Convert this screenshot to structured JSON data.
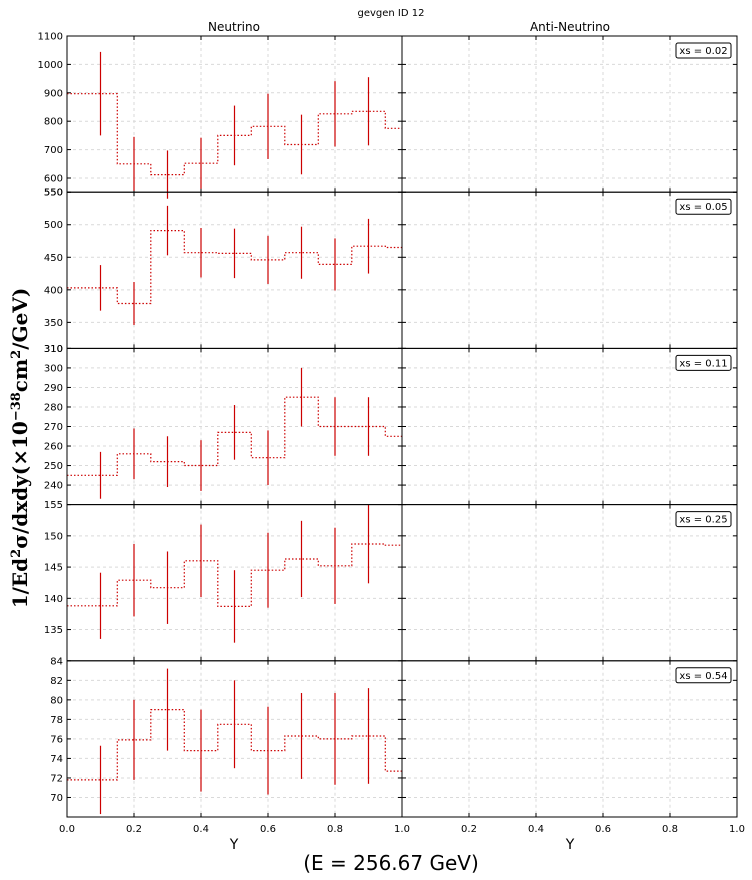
{
  "figure": {
    "suptitle": "gevgen ID 12",
    "column_titles": [
      "Neutrino",
      "Anti-Neutrino"
    ],
    "ylabel_parts": [
      "1/Ed",
      "2",
      "σ/dxdy(×10",
      "−38",
      "cm",
      "2",
      "/GeV)"
    ],
    "energy_label": "(E = 256.67 GeV)",
    "xlabel": "Y"
  },
  "chart_data": [
    {
      "type": "step",
      "panel": "Neutrino",
      "xs_label": "xs = 0.02",
      "xlim": [
        0,
        1
      ],
      "ylim": [
        550,
        1100
      ],
      "yticks": [
        550,
        600,
        700,
        800,
        900,
        1000,
        1100
      ],
      "x": [
        0.1,
        0.2,
        0.3,
        0.4,
        0.5,
        0.6,
        0.7,
        0.8,
        0.9,
        1.0
      ],
      "values": [
        897,
        650,
        612,
        652,
        750,
        782,
        718,
        826,
        835,
        775
      ],
      "errors": [
        147,
        95,
        85,
        90,
        105,
        115,
        105,
        115,
        120,
        0
      ],
      "grid": true
    },
    {
      "type": "step",
      "panel": "Neutrino",
      "xs_label": "xs = 0.05",
      "xlim": [
        0,
        1
      ],
      "ylim": [
        310,
        550
      ],
      "yticks": [
        310,
        350,
        400,
        450,
        500,
        550
      ],
      "x": [
        0.1,
        0.2,
        0.3,
        0.4,
        0.5,
        0.6,
        0.7,
        0.8,
        0.9,
        1.0
      ],
      "values": [
        403,
        379,
        491,
        457,
        456,
        446,
        457,
        439,
        467,
        465
      ],
      "errors": [
        35,
        33,
        38,
        38,
        38,
        37,
        40,
        40,
        42,
        0
      ],
      "grid": true
    },
    {
      "type": "step",
      "panel": "Neutrino",
      "xs_label": "xs = 0.11",
      "xlim": [
        0,
        1
      ],
      "ylim": [
        230,
        310
      ],
      "yticks": [
        240,
        250,
        260,
        270,
        280,
        290,
        300,
        310
      ],
      "x": [
        0.1,
        0.2,
        0.3,
        0.4,
        0.5,
        0.6,
        0.7,
        0.8,
        0.9,
        1.0
      ],
      "values": [
        245,
        256,
        252,
        250,
        267,
        254,
        285,
        270,
        270,
        265
      ],
      "errors": [
        12,
        13,
        13,
        13,
        14,
        14,
        15,
        15,
        15,
        0
      ],
      "grid": true
    },
    {
      "type": "step",
      "panel": "Neutrino",
      "xs_label": "xs = 0.25",
      "xlim": [
        0,
        1
      ],
      "ylim": [
        130,
        155
      ],
      "yticks": [
        135,
        140,
        145,
        150,
        155
      ],
      "x": [
        0.1,
        0.2,
        0.3,
        0.4,
        0.5,
        0.6,
        0.7,
        0.8,
        0.9,
        1.0
      ],
      "values": [
        138.8,
        142.9,
        141.7,
        146.0,
        138.7,
        144.5,
        146.3,
        145.2,
        148.7,
        148.5
      ],
      "errors": [
        5.3,
        5.8,
        5.8,
        5.8,
        5.8,
        6.0,
        6.1,
        6.1,
        6.3,
        0
      ],
      "grid": true
    },
    {
      "type": "step",
      "panel": "Neutrino",
      "xs_label": "xs = 0.54",
      "xlim": [
        0,
        1
      ],
      "ylim": [
        68,
        84
      ],
      "yticks": [
        70,
        72,
        74,
        76,
        78,
        80,
        82,
        84
      ],
      "x": [
        0.1,
        0.2,
        0.3,
        0.4,
        0.5,
        0.6,
        0.7,
        0.8,
        0.9,
        1.0
      ],
      "values": [
        71.8,
        75.9,
        79.0,
        74.8,
        77.5,
        74.8,
        76.3,
        76.0,
        76.3,
        72.7
      ],
      "errors": [
        3.5,
        4.1,
        4.2,
        4.2,
        4.5,
        4.5,
        4.4,
        4.7,
        4.9,
        0
      ],
      "grid": true
    }
  ],
  "xticks": [
    "0.0",
    "0.2",
    "0.4",
    "0.6",
    "0.8",
    "1.0"
  ],
  "style": {
    "line_color": "#cc0000",
    "grid_color": "#d9d9d9"
  }
}
